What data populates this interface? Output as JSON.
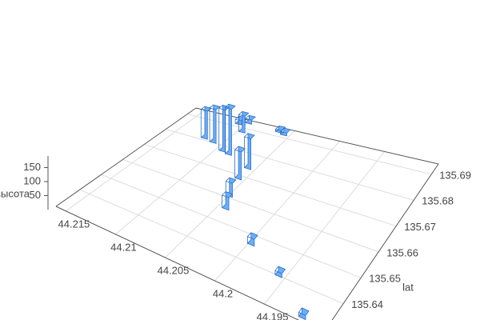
{
  "chart_data": {
    "type": "bar3d",
    "x": [
      44.212,
      44.2109,
      44.2093,
      44.2085,
      44.2095,
      44.2057,
      44.2056,
      44.2049,
      44.2042,
      44.1997,
      44.1956,
      44.1914,
      44.2063,
      44.2056,
      44.2098,
      44.2106
    ],
    "y": [
      135.6817,
      135.681,
      135.6784,
      135.6778,
      135.6888,
      135.6745,
      135.6693,
      135.6615,
      135.6563,
      135.6472,
      135.6407,
      135.631,
      135.6927,
      135.692,
      135.6934,
      135.692
    ],
    "values": [
      100,
      120,
      150,
      165,
      60,
      110,
      100,
      50,
      45,
      25,
      15,
      15,
      8,
      10,
      15,
      15
    ],
    "color": "#6aaeff",
    "xlim": [
      44.216,
      44.189
    ],
    "ylim": [
      135.629,
      135.694
    ],
    "zlim": [
      0,
      180
    ],
    "xticks": [
      44.215,
      44.21,
      44.205,
      44.2,
      44.195
    ],
    "yticks": [
      135.64,
      135.65,
      135.66,
      135.67,
      135.68,
      135.69
    ],
    "zticks": [
      50,
      100,
      150
    ],
    "ylabel": "lat",
    "zlabel": "высота",
    "grid": true
  }
}
